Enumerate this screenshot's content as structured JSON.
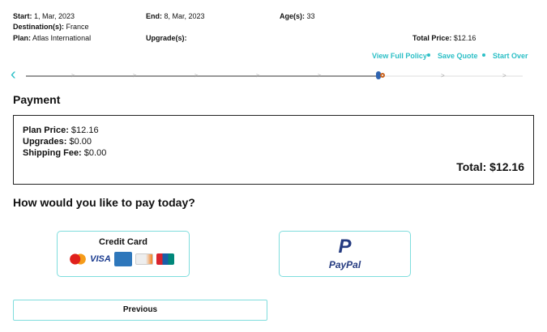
{
  "summary": {
    "start_label": "Start:",
    "start": "1, Mar, 2023",
    "end_label": "End:",
    "end": "8, Mar, 2023",
    "ages_label": "Age(s):",
    "ages": "33",
    "destination_label": "Destination(s):",
    "destination": "France",
    "plan_label": "Plan:",
    "plan": "Atlas International",
    "upgrades_label": "Upgrade(s):",
    "upgrades": "",
    "total_label": "Total Price:",
    "total": "$12.16"
  },
  "links": {
    "view_policy": "View Full Policy",
    "save_quote": "Save Quote",
    "start_over": "Start Over"
  },
  "progress": {
    "total_steps": 8,
    "current_step": 6,
    "accent": "#2bbfc6"
  },
  "payment": {
    "title": "Payment",
    "plan_price_label": "Plan Price:",
    "plan_price": "$12.16",
    "upgrades_label": "Upgrades:",
    "upgrades": "$0.00",
    "shipping_label": "Shipping Fee:",
    "shipping": "$0.00",
    "total_label": "Total:",
    "total": "$12.16"
  },
  "question": "How would you like to pay today?",
  "methods": {
    "credit_card": "Credit Card",
    "cards": [
      "mastercard-icon",
      "visa-icon",
      "amex-icon",
      "discover-icon",
      "unionpay-icon"
    ],
    "visa_text": "VISA",
    "paypal": "PayPal"
  },
  "nav": {
    "previous": "Previous"
  }
}
